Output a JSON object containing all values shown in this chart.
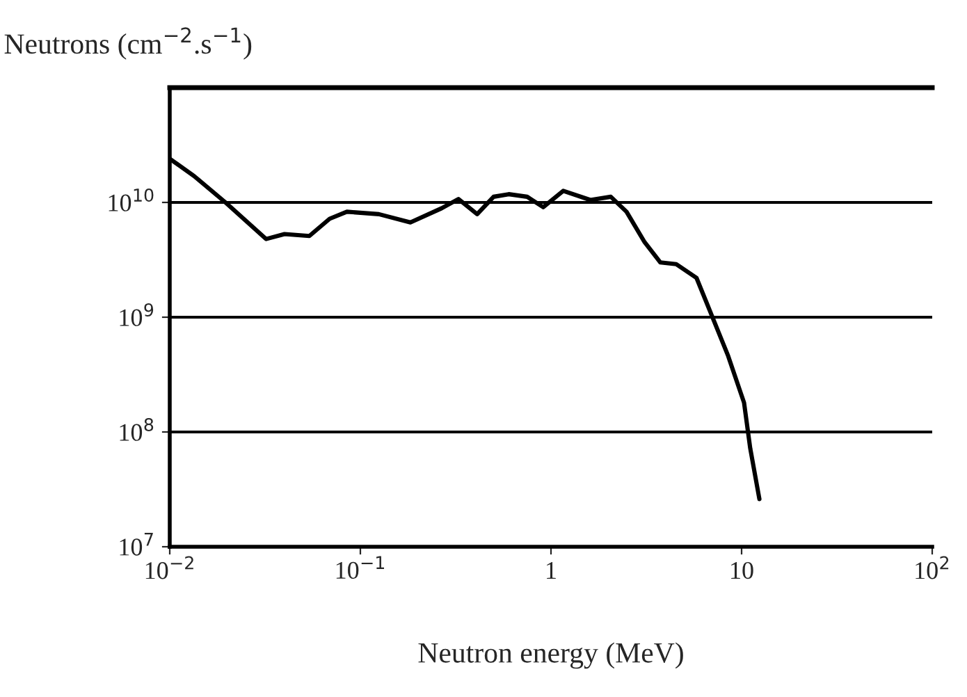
{
  "chart_data": {
    "type": "line",
    "xlabel": "Neutron energy (MeV)",
    "ylabel": "Neutrons (cm$^{−2}$.s$^{−1}$)",
    "log": "xy",
    "grid": "y",
    "marker": "none",
    "line_style": "solid",
    "xlim": [
      0.01,
      100
    ],
    "ylim": [
      10000000.0,
      100000000000.0
    ],
    "xticks": [
      {
        "value": 0.01,
        "label": "10$^{−2}$"
      },
      {
        "value": 0.1,
        "label": "10$^{−1}$"
      },
      1,
      10,
      {
        "value": 100,
        "label": "10$^{2}$"
      }
    ],
    "yticks": [
      {
        "value": 10000000.0,
        "label": "10$^{7}$"
      },
      {
        "value": 100000000.0,
        "label": "10$^{8}$"
      },
      {
        "value": 1000000000.0,
        "label": "10$^{9}$"
      },
      {
        "value": 10000000000.0,
        "label": "10$^{10}$"
      }
    ],
    "series": [
      {
        "color": "#000000",
        "x": [
          0.01,
          0.0134,
          0.0196,
          0.032,
          0.04,
          0.054,
          0.069,
          0.085,
          0.125,
          0.183,
          0.267,
          0.327,
          0.41,
          0.5,
          0.6,
          0.75,
          0.91,
          1.16,
          1.61,
          2.06,
          2.49,
          3.1,
          3.75,
          4.54,
          5.8,
          7.0,
          8.5,
          10.3,
          11.1,
          12.4
        ],
        "values": [
          24000000000.0,
          17000000000.0,
          10000000000.0,
          4800000000.0,
          5300000000.0,
          5100000000.0,
          7200000000.0,
          8300000000.0,
          7900000000.0,
          6700000000.0,
          8900000000.0,
          10700000000.0,
          7900000000.0,
          11200000000.0,
          11800000000.0,
          11200000000.0,
          9100000000.0,
          12600000000.0,
          10500000000.0,
          11200000000.0,
          8300000000.0,
          4500000000.0,
          3000000000.0,
          2900000000.0,
          2200000000.0,
          1020000000.0,
          460000000.0,
          180000000.0,
          72000000.0,
          26000000.0
        ]
      }
    ]
  }
}
